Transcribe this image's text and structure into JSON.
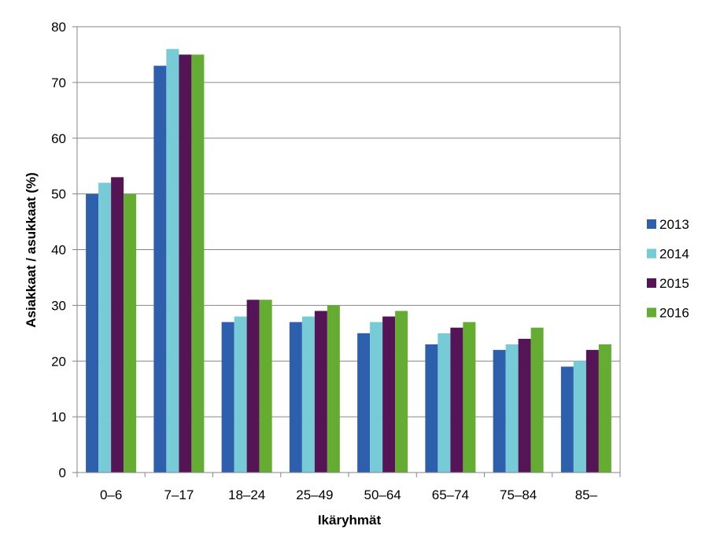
{
  "chart_data": {
    "type": "bar",
    "title": "",
    "xlabel": "Ikäryhmät",
    "ylabel": "Asiakkaat / asukkaat (%)",
    "ylim": [
      0,
      80
    ],
    "yticks": [
      0,
      10,
      20,
      30,
      40,
      50,
      60,
      70,
      80
    ],
    "grid": true,
    "legend_position": "right",
    "categories": [
      "0–6",
      "7–17",
      "18–24",
      "25–49",
      "50–64",
      "65–74",
      "75–84",
      "85–"
    ],
    "series": [
      {
        "name": "2013",
        "color": "#2e5fac",
        "values": [
          50,
          73,
          27,
          27,
          25,
          23,
          22,
          19
        ]
      },
      {
        "name": "2014",
        "color": "#76cbd6",
        "values": [
          52,
          76,
          28,
          28,
          27,
          25,
          23,
          20
        ]
      },
      {
        "name": "2015",
        "color": "#551455",
        "values": [
          53,
          75,
          31,
          29,
          28,
          26,
          24,
          22
        ]
      },
      {
        "name": "2016",
        "color": "#65ad32",
        "values": [
          50,
          75,
          31,
          30,
          29,
          27,
          26,
          23
        ]
      }
    ]
  }
}
